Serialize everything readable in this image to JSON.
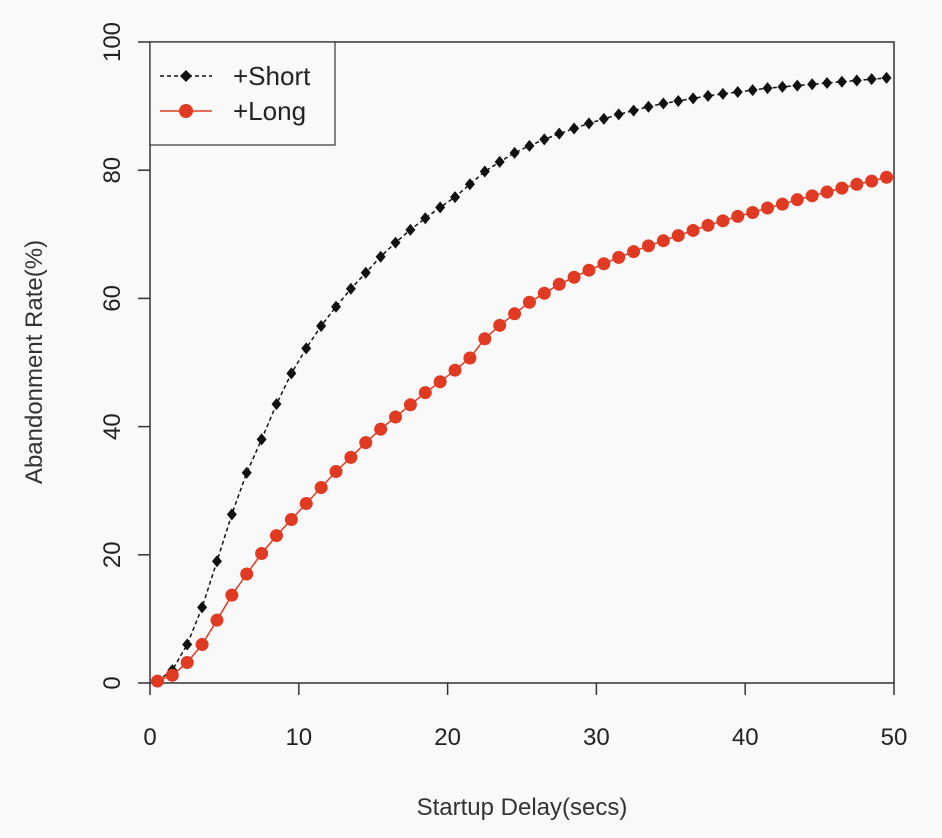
{
  "chart_data": {
    "type": "line",
    "title": "",
    "xlabel": "Startup Delay(secs)",
    "ylabel": "Abandonment Rate(%)",
    "xlim": [
      0,
      50
    ],
    "ylim": [
      0,
      100
    ],
    "xticks": [
      "0",
      "10",
      "20",
      "30",
      "40",
      "50"
    ],
    "yticks": [
      "0",
      "20",
      "40",
      "60",
      "80",
      "100"
    ],
    "grid": false,
    "legend_position": "top-left",
    "series": [
      {
        "name": "+Short",
        "color": "#111111",
        "marker": "diamond",
        "line_style": "dashed",
        "x": [
          0.5,
          1.5,
          2.5,
          3.5,
          4.5,
          5.5,
          6.5,
          7.5,
          8.5,
          9.5,
          10.5,
          11.5,
          12.5,
          13.5,
          14.5,
          15.5,
          16.5,
          17.5,
          18.5,
          19.5,
          20.5,
          21.5,
          22.5,
          23.5,
          24.5,
          25.5,
          26.5,
          27.5,
          28.5,
          29.5,
          30.5,
          31.5,
          32.5,
          33.5,
          34.5,
          35.5,
          36.5,
          37.5,
          38.5,
          39.5,
          40.5,
          41.5,
          42.5,
          43.5,
          44.5,
          45.5,
          46.5,
          47.5,
          48.5,
          49.5
        ],
        "y": [
          0.3,
          2.0,
          6.0,
          11.8,
          19.0,
          26.3,
          32.8,
          38.0,
          43.5,
          48.3,
          52.2,
          55.7,
          58.7,
          61.5,
          64.0,
          66.5,
          68.7,
          70.7,
          72.5,
          74.2,
          75.8,
          77.8,
          79.8,
          81.3,
          82.7,
          83.8,
          84.8,
          85.7,
          86.5,
          87.3,
          88.0,
          88.7,
          89.3,
          89.9,
          90.4,
          90.8,
          91.2,
          91.6,
          91.9,
          92.2,
          92.5,
          92.8,
          93.0,
          93.2,
          93.4,
          93.6,
          93.8,
          94.0,
          94.2,
          94.4
        ]
      },
      {
        "name": "+Long",
        "color": "#e03a22",
        "marker": "circle",
        "line_style": "solid",
        "x": [
          0.5,
          1.5,
          2.5,
          3.5,
          4.5,
          5.5,
          6.5,
          7.5,
          8.5,
          9.5,
          10.5,
          11.5,
          12.5,
          13.5,
          14.5,
          15.5,
          16.5,
          17.5,
          18.5,
          19.5,
          20.5,
          21.5,
          22.5,
          23.5,
          24.5,
          25.5,
          26.5,
          27.5,
          28.5,
          29.5,
          30.5,
          31.5,
          32.5,
          33.5,
          34.5,
          35.5,
          36.5,
          37.5,
          38.5,
          39.5,
          40.5,
          41.5,
          42.5,
          43.5,
          44.5,
          45.5,
          46.5,
          47.5,
          48.5,
          49.5
        ],
        "y": [
          0.3,
          1.2,
          3.2,
          6.0,
          9.8,
          13.7,
          17.0,
          20.2,
          23.0,
          25.5,
          28.0,
          30.5,
          33.0,
          35.2,
          37.5,
          39.6,
          41.5,
          43.4,
          45.3,
          47.0,
          48.8,
          50.7,
          53.7,
          55.8,
          57.6,
          59.4,
          60.8,
          62.2,
          63.3,
          64.4,
          65.4,
          66.4,
          67.3,
          68.2,
          69.0,
          69.8,
          70.6,
          71.4,
          72.1,
          72.8,
          73.4,
          74.1,
          74.7,
          75.4,
          76.0,
          76.6,
          77.2,
          77.8,
          78.3,
          78.9
        ]
      }
    ]
  }
}
